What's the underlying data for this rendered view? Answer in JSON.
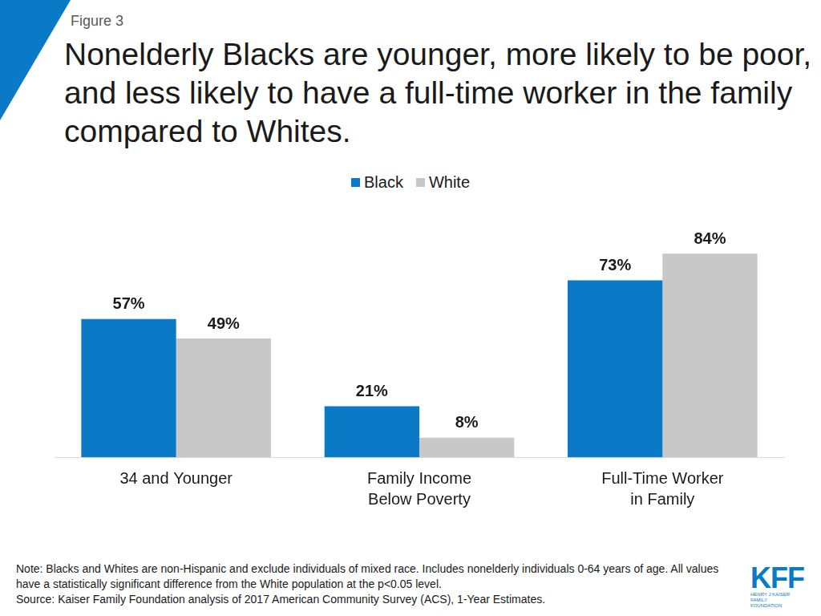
{
  "chart_data": {
    "type": "bar",
    "figure_label": "Figure 3",
    "title": "Nonelderly Blacks are younger, more likely to be poor, and less likely to have a full-time worker in the family compared to Whites.",
    "categories": [
      "34 and Younger",
      "Family Income\nBelow Poverty",
      "Full-Time Worker\nin Family"
    ],
    "series": [
      {
        "name": "Black",
        "color": "#0a79c6",
        "values": [
          57,
          21,
          73
        ],
        "value_labels": [
          "57%",
          "21%",
          "73%"
        ]
      },
      {
        "name": "White",
        "color": "#c8c8c8",
        "values": [
          49,
          8,
          84
        ],
        "value_labels": [
          "49%",
          "8%",
          "84%"
        ]
      }
    ],
    "ylim": [
      0,
      100
    ],
    "grid": false,
    "legend": "top",
    "data_labels": true,
    "tick_labels": "x",
    "note": "Note: Blacks and Whites are non-Hispanic and exclude individuals of mixed race. Includes nonelderly individuals 0-64 years of age. All values have a statistically significant difference from the White population at the p<0.05 level.",
    "source": "Source: Kaiser Family Foundation analysis of 2017 American Community Survey (ACS), 1-Year Estimates.",
    "logo": "KFF",
    "logo_subtitle": "HENRY J KAISER FAMILY FOUNDATION"
  }
}
